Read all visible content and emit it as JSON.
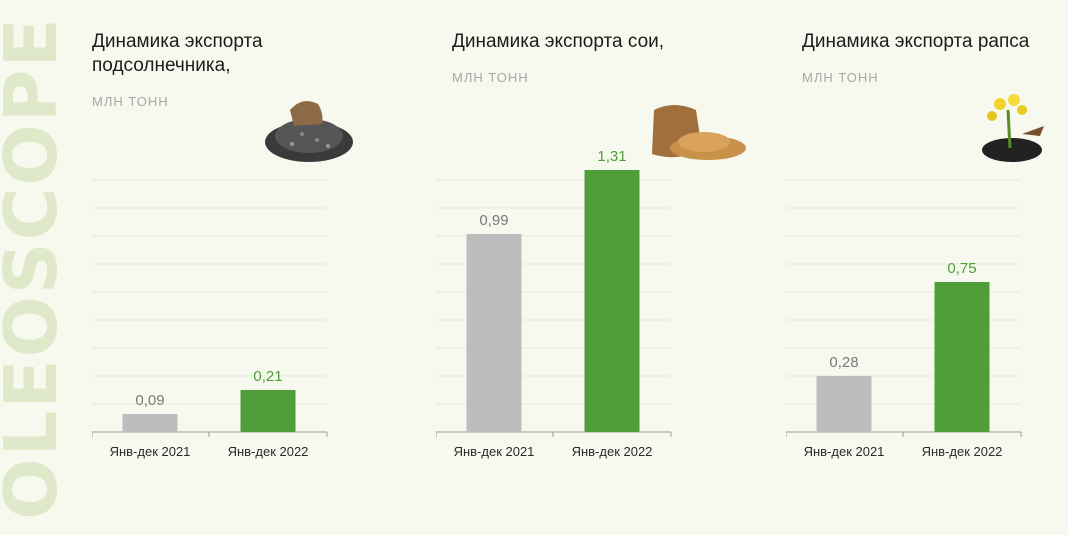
{
  "watermark": "OLEOSCOPE",
  "colors": {
    "y2021": "#bdbdbd",
    "y2022": "#4f9e3a",
    "label2021": "#7a7a7a",
    "label2022": "#4f9e3a"
  },
  "charts": [
    {
      "title": "Динамика экспорта\nподсолнечника,",
      "unit": "МЛН ТОНН",
      "icon": "sunflower-seeds-icon"
    },
    {
      "title": "Динамика экспорта сои,",
      "unit": "МЛН ТОНН",
      "icon": "soybean-sack-icon"
    },
    {
      "title": "Динамика экспорта рапса",
      "unit": "МЛН ТОНН",
      "icon": "rapeseed-plant-icon"
    }
  ],
  "chart_data": [
    {
      "type": "bar",
      "title": "Динамика экспорта подсолнечника,",
      "ylabel": "млн тонн",
      "categories": [
        "Янв-дек 2021",
        "Янв-дек 2022"
      ],
      "values": [
        0.09,
        0.21
      ],
      "value_labels": [
        "0,09",
        "0,21"
      ],
      "grid": true,
      "legend": "none"
    },
    {
      "type": "bar",
      "title": "Динамика экспорта сои,",
      "ylabel": "млн тонн",
      "categories": [
        "Янв-дек 2021",
        "Янв-дек 2022"
      ],
      "values": [
        0.99,
        1.31
      ],
      "value_labels": [
        "0,99",
        "1,31"
      ],
      "grid": true,
      "legend": "none"
    },
    {
      "type": "bar",
      "title": "Динамика экспорта рапса",
      "ylabel": "млн тонн",
      "categories": [
        "Янв-дек 2021",
        "Янв-дек 2022"
      ],
      "values": [
        0.28,
        0.75
      ],
      "value_labels": [
        "0,28",
        "0,75"
      ],
      "grid": true,
      "legend": "none"
    }
  ]
}
